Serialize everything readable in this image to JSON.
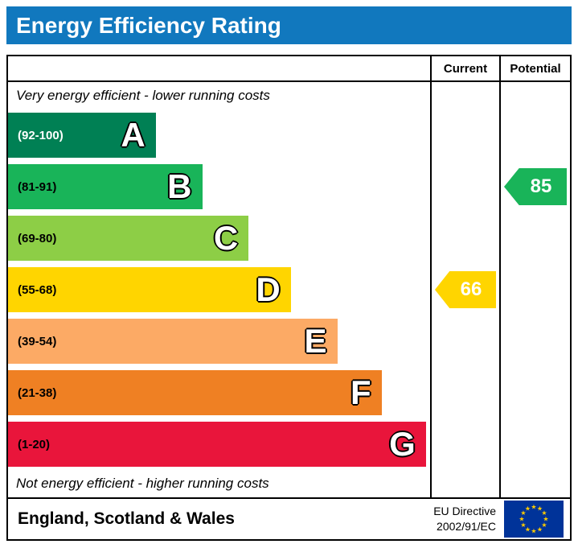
{
  "title": "Energy Efficiency Rating",
  "header": {
    "current_label": "Current",
    "potential_label": "Potential"
  },
  "notes": {
    "top": "Very energy efficient - lower running costs",
    "bottom": "Not energy efficient - higher running costs"
  },
  "footer": {
    "region": "England, Scotland & Wales",
    "directive_line1": "EU Directive",
    "directive_line2": "2002/91/EC"
  },
  "colors": {
    "title_bar": "#1178be",
    "flag_blue": "#003399",
    "flag_star": "#ffcc00"
  },
  "chart_data": {
    "type": "bar",
    "title": "Energy Efficiency Rating",
    "categories": [
      "A",
      "B",
      "C",
      "D",
      "E",
      "F",
      "G"
    ],
    "bands": [
      {
        "letter": "A",
        "range": "(92-100)",
        "min": 92,
        "max": 100,
        "color": "#008054",
        "range_text_color": "#ffffff",
        "width_pct": 35
      },
      {
        "letter": "B",
        "range": "(81-91)",
        "min": 81,
        "max": 91,
        "color": "#19b459",
        "range_text_color": "#000000",
        "width_pct": 46
      },
      {
        "letter": "C",
        "range": "(69-80)",
        "min": 69,
        "max": 80,
        "color": "#8dce46",
        "range_text_color": "#000000",
        "width_pct": 57
      },
      {
        "letter": "D",
        "range": "(55-68)",
        "min": 55,
        "max": 68,
        "color": "#ffd500",
        "range_text_color": "#000000",
        "width_pct": 67
      },
      {
        "letter": "E",
        "range": "(39-54)",
        "min": 39,
        "max": 54,
        "color": "#fcaa65",
        "range_text_color": "#000000",
        "width_pct": 78
      },
      {
        "letter": "F",
        "range": "(21-38)",
        "min": 21,
        "max": 38,
        "color": "#ef8023",
        "range_text_color": "#000000",
        "width_pct": 88.5
      },
      {
        "letter": "G",
        "range": "(1-20)",
        "min": 1,
        "max": 20,
        "color": "#e9153b",
        "range_text_color": "#000000",
        "width_pct": 99
      }
    ],
    "current": {
      "value": 66,
      "band": "D",
      "band_index": 3,
      "color": "#ffd500"
    },
    "potential": {
      "value": 85,
      "band": "B",
      "band_index": 1,
      "color": "#19b459"
    }
  }
}
